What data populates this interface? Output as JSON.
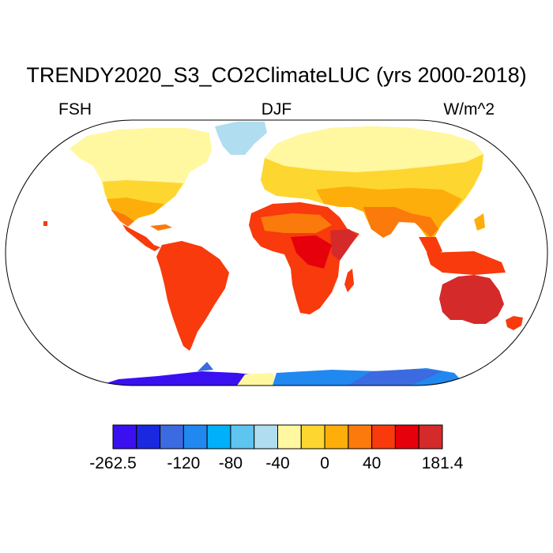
{
  "title": "TRENDY2020_S3_CO2ClimateLUC (yrs 2000-2018)",
  "left_label": "FSH",
  "center_label": "DJF",
  "right_label": "W/m^2",
  "colorbar": {
    "colors": [
      "#3a10f0",
      "#1a28e0",
      "#3c6ae0",
      "#2188f0",
      "#00b0f8",
      "#5ec4f0",
      "#b0def0",
      "#fff8a0",
      "#fed630",
      "#fdae0a",
      "#fb7a0c",
      "#f83a0c",
      "#e6000c",
      "#d42a2a"
    ],
    "labels": [
      {
        "text": "-262.5",
        "edge": 0
      },
      {
        "text": "-120",
        "edge": 3
      },
      {
        "text": "-80",
        "edge": 5
      },
      {
        "text": "-40",
        "edge": 7
      },
      {
        "text": "0",
        "edge": 9
      },
      {
        "text": "40",
        "edge": 11
      },
      {
        "text": "181.4",
        "edge": 14
      }
    ]
  }
}
